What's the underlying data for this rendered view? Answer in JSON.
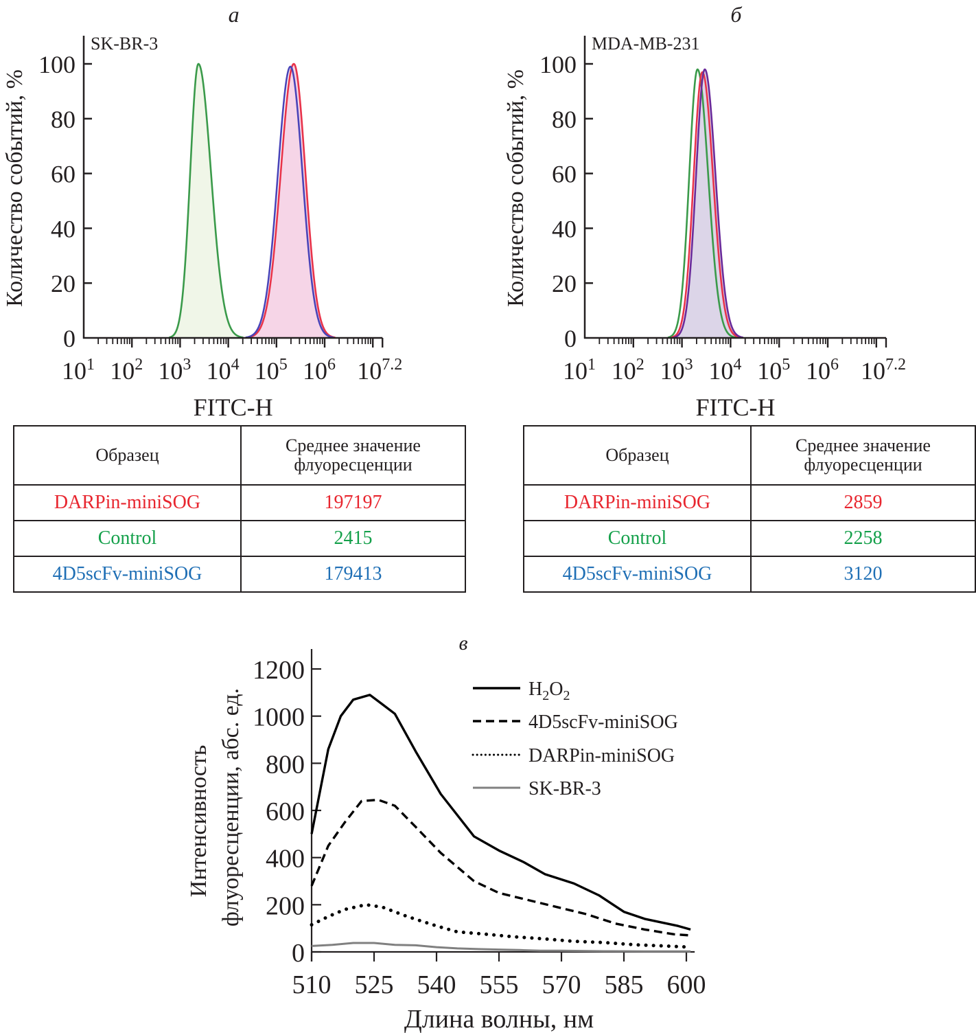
{
  "chart_data": [
    {
      "panel_label": "а",
      "type": "area",
      "title": "SK-BR-3",
      "xlabel": "FITC-H",
      "ylabel": "Количество событий, %",
      "x_scale": "log",
      "xlim_log10": [
        1,
        7.2
      ],
      "ylim": [
        0,
        110
      ],
      "yticks": [
        "0",
        "20",
        "40",
        "60",
        "80",
        "100"
      ],
      "xticks": [
        {
          "base": "10",
          "exp": "1"
        },
        {
          "base": "10",
          "exp": "2"
        },
        {
          "base": "10",
          "exp": "3"
        },
        {
          "base": "10",
          "exp": "4"
        },
        {
          "base": "10",
          "exp": "5"
        },
        {
          "base": "10",
          "exp": "6"
        },
        {
          "base": "10",
          "exp": "7.2"
        }
      ],
      "series": [
        {
          "name": "Control",
          "color": "#3a9a4a",
          "fill": "#eef5e6",
          "peak_log10": 3.38,
          "sigma_left": 0.17,
          "sigma_right": 0.26,
          "peak": 100
        },
        {
          "name": "DARPin-miniSOG",
          "color": "#e8334a",
          "fill": "#f5d0e4",
          "peak_log10": 5.36,
          "sigma_left": 0.27,
          "sigma_right": 0.24,
          "peak": 100
        },
        {
          "name": "4D5scFv-miniSOG",
          "color": "#4a44b8",
          "fill": "none",
          "peak_log10": 5.29,
          "sigma_left": 0.26,
          "sigma_right": 0.25,
          "peak": 99
        }
      ]
    },
    {
      "panel_label": "б",
      "type": "area",
      "title": "MDA-MB-231",
      "xlabel": "FITC-H",
      "ylabel": "Количество событий, %",
      "x_scale": "log",
      "xlim_log10": [
        1,
        7.2
      ],
      "ylim": [
        0,
        110
      ],
      "yticks": [
        "0",
        "20",
        "40",
        "60",
        "80",
        "100"
      ],
      "xticks": [
        {
          "base": "10",
          "exp": "1"
        },
        {
          "base": "10",
          "exp": "2"
        },
        {
          "base": "10",
          "exp": "3"
        },
        {
          "base": "10",
          "exp": "4"
        },
        {
          "base": "10",
          "exp": "5"
        },
        {
          "base": "10",
          "exp": "6"
        },
        {
          "base": "10",
          "exp": "7.2"
        }
      ],
      "series": [
        {
          "name": "Control",
          "color": "#3a9a4a",
          "fill": "none",
          "peak_log10": 3.32,
          "sigma_left": 0.17,
          "sigma_right": 0.22,
          "peak": 98
        },
        {
          "name": "DARPin-miniSOG",
          "color": "#e8334a",
          "fill": "none",
          "peak_log10": 3.42,
          "sigma_left": 0.18,
          "sigma_right": 0.22,
          "peak": 97
        },
        {
          "name": "4D5scFv-miniSOG",
          "color": "#6a2a9a",
          "fill": "#d8d0e6",
          "peak_log10": 3.47,
          "sigma_left": 0.18,
          "sigma_right": 0.22,
          "peak": 98
        }
      ]
    },
    {
      "panel_label": "в",
      "type": "line",
      "title": "",
      "xlabel": "Длина волны, нм",
      "ylabel_line1": "Интенсивность",
      "ylabel_line2": "флуоресценции, абс. ед.",
      "xlim": [
        510,
        602
      ],
      "ylim": [
        0,
        1260
      ],
      "xticks": [
        "510",
        "525",
        "540",
        "555",
        "570",
        "585",
        "600"
      ],
      "yticks": [
        "0",
        "200",
        "400",
        "600",
        "800",
        "1000",
        "1200"
      ],
      "legend_position": "top-right",
      "series": [
        {
          "name": "H2O2",
          "label_main": "H",
          "sub1": "2",
          "label_mid": "O",
          "sub2": "2",
          "style": "solid",
          "color": "#000000",
          "x": [
            510,
            514,
            517,
            520,
            524,
            527,
            530,
            535,
            541,
            549,
            555,
            561,
            566,
            573,
            579,
            585,
            590,
            598,
            601
          ],
          "y": [
            500,
            860,
            1000,
            1070,
            1090,
            1050,
            1010,
            850,
            670,
            490,
            430,
            380,
            330,
            290,
            240,
            170,
            140,
            110,
            95
          ]
        },
        {
          "name": "4D5scFv-miniSOG",
          "style": "dashed",
          "color": "#000000",
          "x": [
            510,
            514,
            518,
            522,
            526,
            530,
            535,
            541,
            549,
            555,
            562,
            569,
            576,
            583,
            590,
            597,
            601
          ],
          "y": [
            280,
            450,
            550,
            640,
            645,
            620,
            530,
            420,
            300,
            250,
            220,
            190,
            160,
            120,
            95,
            75,
            70
          ]
        },
        {
          "name": "DARPin-miniSOG",
          "style": "dotted",
          "color": "#000000",
          "x": [
            510,
            514,
            518,
            523,
            527,
            533,
            540,
            545,
            552,
            558,
            566,
            573,
            580,
            588,
            595,
            601
          ],
          "y": [
            115,
            150,
            180,
            200,
            190,
            150,
            110,
            85,
            75,
            65,
            55,
            45,
            40,
            30,
            25,
            20
          ]
        },
        {
          "name": "SK-BR-3",
          "style": "solid",
          "color": "#808080",
          "x": [
            510,
            515,
            520,
            525,
            530,
            535,
            540,
            545,
            550,
            555,
            560,
            565,
            570,
            580,
            590,
            601
          ],
          "y": [
            25,
            30,
            38,
            38,
            30,
            28,
            20,
            15,
            12,
            10,
            8,
            5,
            5,
            3,
            2,
            2
          ]
        }
      ]
    }
  ],
  "tables": [
    {
      "headers": [
        "Образец",
        "Среднее значение",
        "флуоресценции"
      ],
      "rows": [
        {
          "sample": "DARPin-miniSOG",
          "value": "197197",
          "color": "#e8262f"
        },
        {
          "sample": "Control",
          "value": "2415",
          "color": "#14a04a"
        },
        {
          "sample": "4D5scFv-miniSOG",
          "value": "179413",
          "color": "#1f6fb5"
        }
      ]
    },
    {
      "headers": [
        "Образец",
        "Среднее значение",
        "флуоресценции"
      ],
      "rows": [
        {
          "sample": "DARPin-miniSOG",
          "value": "2859",
          "color": "#e8262f"
        },
        {
          "sample": "Control",
          "value": "2258",
          "color": "#14a04a"
        },
        {
          "sample": "4D5scFv-miniSOG",
          "value": "3120",
          "color": "#1f6fb5"
        }
      ]
    }
  ]
}
